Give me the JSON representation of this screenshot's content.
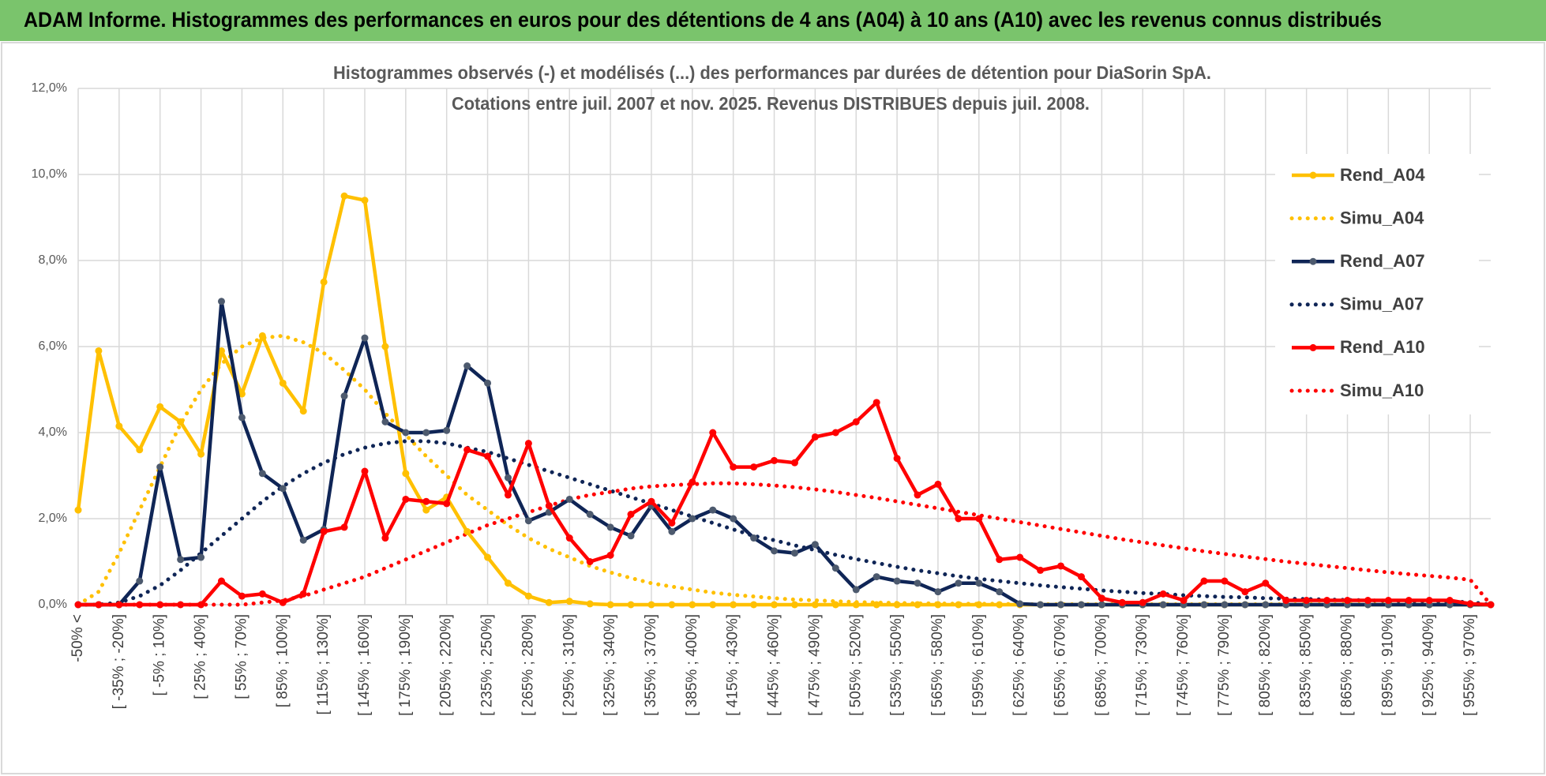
{
  "header": {
    "title": "ADAM Informe. Histogrammes des performances en euros pour des détentions de 4 ans (A04) à 10 ans (A10) avec les revenus connus distribués"
  },
  "chart_data": {
    "type": "line",
    "title": "Histogrammes observés (-) et modélisés (...) des performances par durées de détention pour DiaSorin SpA.",
    "subtitle": "Cotations entre juil. 2007 et nov. 2025. Revenus DISTRIBUES depuis juil. 2008.",
    "categories": [
      "-50% <",
      null,
      "[ -35% ; -20%]",
      null,
      "[ -5% ; 10%]",
      null,
      "[ 25% ; 40%]",
      null,
      "[ 55% ; 70%]",
      null,
      "[ 85% ; 100%]",
      null,
      "[ 115% ; 130%]",
      null,
      "[ 145% ; 160%]",
      null,
      "[ 175% ; 190%]",
      null,
      "[ 205% ; 220%]",
      null,
      "[ 235% ; 250%]",
      null,
      "[ 265% ; 280%]",
      null,
      "[ 295% ; 310%]",
      null,
      "[ 325% ; 340%]",
      null,
      "[ 355% ; 370%]",
      null,
      "[ 385% ; 400%]",
      null,
      "[ 415% ; 430%]",
      null,
      "[ 445% ; 460%]",
      null,
      "[ 475% ; 490%]",
      null,
      "[ 505% ; 520%]",
      null,
      "[ 535% ; 550%]",
      null,
      "[ 565% ; 580%]",
      null,
      "[ 595% ; 610%]",
      null,
      "[ 625% ; 640%]",
      null,
      "[ 655% ; 670%]",
      null,
      "[ 685% ; 700%]",
      null,
      "[ 715% ; 730%]",
      null,
      "[ 745% ; 760%]",
      null,
      "[ 775% ; 790%]",
      null,
      "[ 805% ; 820%]",
      null,
      "[ 835% ; 850%]",
      null,
      "[ 865% ; 880%]",
      null,
      "[ 895% ; 910%]",
      null,
      "[ 925% ; 940%]",
      null,
      "[ 955% ; 970%]",
      null
    ],
    "series": [
      {
        "name": "Rend_A04",
        "color": "#ffc000",
        "style": "solid",
        "marker": true,
        "marker_color": "#ffc000",
        "values": [
          2.2,
          5.9,
          4.15,
          3.6,
          4.6,
          4.25,
          3.5,
          5.9,
          4.9,
          6.25,
          5.15,
          4.5,
          7.5,
          9.5,
          9.4,
          6.0,
          3.05,
          2.2,
          2.5,
          1.7,
          1.1,
          0.5,
          0.2,
          0.05,
          0.08,
          0.02,
          0,
          0,
          0,
          0,
          0,
          0,
          0,
          0,
          0,
          0,
          0,
          0,
          0,
          0,
          0,
          0,
          0,
          0,
          0,
          0,
          0,
          0,
          0,
          0,
          0,
          0,
          0,
          0,
          0,
          0,
          0,
          0,
          0,
          0,
          0,
          0,
          0,
          0,
          0,
          0,
          0,
          0,
          0,
          0
        ]
      },
      {
        "name": "Simu_A04",
        "color": "#ffc000",
        "style": "dotted",
        "marker": false,
        "values": [
          0,
          0.3,
          1.2,
          2.2,
          3.2,
          4.2,
          5.0,
          5.6,
          6.0,
          6.2,
          6.25,
          6.1,
          5.85,
          5.45,
          5.0,
          4.45,
          3.95,
          3.45,
          3.0,
          2.55,
          2.2,
          1.85,
          1.55,
          1.3,
          1.1,
          0.9,
          0.75,
          0.62,
          0.5,
          0.42,
          0.35,
          0.28,
          0.23,
          0.19,
          0.15,
          0.12,
          0.1,
          0.08,
          0.06,
          0.05,
          0.04,
          0.03,
          0.03,
          0.02,
          0.02,
          0.02,
          0.01,
          0.01,
          0.01,
          0.01,
          0.01,
          0.01,
          0.01,
          0.01,
          0.01,
          0.01,
          0.01,
          0.01,
          0.01,
          0.01,
          0.01,
          0.01,
          0.01,
          0.01,
          0.01,
          0.01,
          0.01,
          0.01,
          0.01,
          0
        ]
      },
      {
        "name": "Rend_A07",
        "color": "#0f2556",
        "style": "solid",
        "marker": true,
        "marker_color": "#4d5a6e",
        "values": [
          0,
          0,
          0,
          0.55,
          3.2,
          1.05,
          1.1,
          7.05,
          4.35,
          3.05,
          2.7,
          1.5,
          1.75,
          4.85,
          6.2,
          4.25,
          4.0,
          4.0,
          4.05,
          5.55,
          5.15,
          2.95,
          1.95,
          2.15,
          2.45,
          2.1,
          1.8,
          1.6,
          2.3,
          1.7,
          2.0,
          2.2,
          2.0,
          1.55,
          1.25,
          1.2,
          1.4,
          0.85,
          0.35,
          0.65,
          0.55,
          0.5,
          0.3,
          0.5,
          0.5,
          0.3,
          0.02,
          0,
          0,
          0,
          0,
          0,
          0,
          0,
          0,
          0,
          0,
          0,
          0,
          0,
          0,
          0,
          0,
          0,
          0,
          0,
          0,
          0,
          0,
          0
        ]
      },
      {
        "name": "Simu_A07",
        "color": "#0f2556",
        "style": "dotted",
        "marker": false,
        "values": [
          0,
          0,
          0.05,
          0.2,
          0.45,
          0.8,
          1.2,
          1.6,
          2.0,
          2.4,
          2.75,
          3.05,
          3.3,
          3.5,
          3.65,
          3.75,
          3.8,
          3.8,
          3.75,
          3.65,
          3.55,
          3.4,
          3.25,
          3.1,
          2.95,
          2.8,
          2.65,
          2.5,
          2.35,
          2.2,
          2.05,
          1.9,
          1.75,
          1.6,
          1.5,
          1.38,
          1.27,
          1.16,
          1.06,
          0.97,
          0.88,
          0.8,
          0.73,
          0.66,
          0.6,
          0.55,
          0.5,
          0.45,
          0.41,
          0.37,
          0.33,
          0.3,
          0.27,
          0.25,
          0.22,
          0.2,
          0.18,
          0.17,
          0.15,
          0.14,
          0.13,
          0.12,
          0.11,
          0.1,
          0.09,
          0.08,
          0.08,
          0.07,
          0.06,
          0
        ]
      },
      {
        "name": "Rend_A10",
        "color": "#ff0000",
        "style": "solid",
        "marker": true,
        "marker_color": "#ff0000",
        "values": [
          0,
          0,
          0,
          0,
          0,
          0,
          0,
          0.55,
          0.2,
          0.25,
          0.05,
          0.25,
          1.7,
          1.8,
          3.1,
          1.55,
          2.45,
          2.4,
          2.35,
          3.6,
          3.45,
          2.55,
          3.75,
          2.3,
          1.55,
          1.0,
          1.15,
          2.1,
          2.4,
          1.9,
          2.85,
          4.0,
          3.2,
          3.2,
          3.35,
          3.3,
          3.9,
          4.0,
          4.25,
          4.7,
          3.4,
          2.55,
          2.8,
          2.0,
          2.0,
          1.05,
          1.1,
          0.8,
          0.9,
          0.65,
          0.15,
          0.05,
          0.05,
          0.25,
          0.1,
          0.55,
          0.55,
          0.3,
          0.5,
          0.1,
          0.1,
          0.1,
          0.1,
          0.1,
          0.1,
          0.1,
          0.1,
          0.1,
          0.02,
          0
        ]
      },
      {
        "name": "Simu_A10",
        "color": "#ff0000",
        "style": "dotted",
        "marker": false,
        "values": [
          0,
          0,
          0,
          0,
          0,
          0,
          0,
          0,
          0,
          0.05,
          0.1,
          0.2,
          0.35,
          0.5,
          0.65,
          0.85,
          1.05,
          1.25,
          1.45,
          1.65,
          1.85,
          2.0,
          2.15,
          2.3,
          2.45,
          2.55,
          2.62,
          2.7,
          2.75,
          2.78,
          2.8,
          2.82,
          2.82,
          2.8,
          2.77,
          2.73,
          2.68,
          2.62,
          2.55,
          2.48,
          2.4,
          2.32,
          2.24,
          2.16,
          2.08,
          2.0,
          1.92,
          1.84,
          1.76,
          1.68,
          1.6,
          1.52,
          1.45,
          1.38,
          1.31,
          1.24,
          1.18,
          1.12,
          1.06,
          1.0,
          0.95,
          0.9,
          0.85,
          0.8,
          0.75,
          0.71,
          0.67,
          0.63,
          0.58,
          0
        ]
      }
    ],
    "ylim": [
      0,
      12
    ],
    "yticks": [
      {
        "value": 0,
        "label": "0,0%"
      },
      {
        "value": 2,
        "label": "2,0%"
      },
      {
        "value": 4,
        "label": "4,0%"
      },
      {
        "value": 6,
        "label": "6,0%"
      },
      {
        "value": 8,
        "label": "8,0%"
      },
      {
        "value": 10,
        "label": "10,0%"
      },
      {
        "value": 12,
        "label": "12,0%"
      }
    ],
    "grid": true,
    "legend": "right"
  }
}
